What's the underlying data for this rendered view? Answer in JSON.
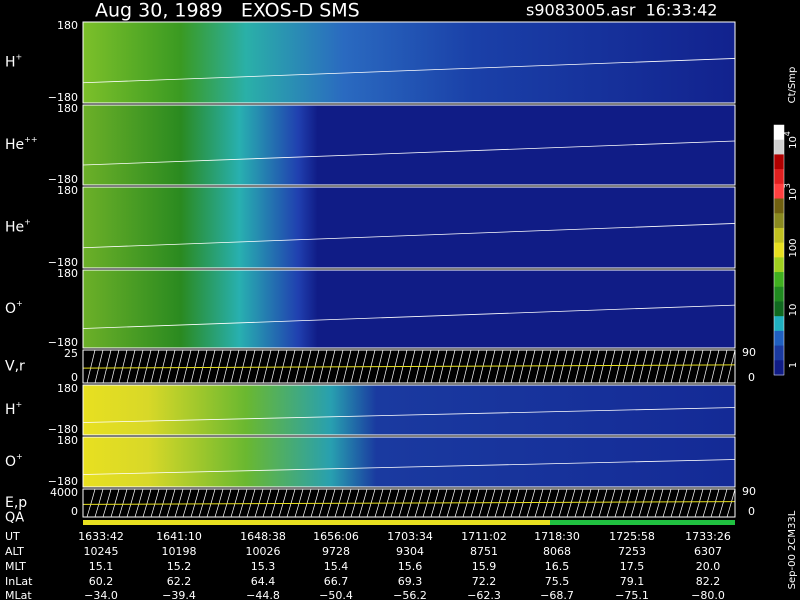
{
  "header": {
    "title": "Aug 30, 1989   EXOS-D SMS",
    "file": "s9083005.asr  16:33:42"
  },
  "panels": [
    {
      "label": {
        "base": "H",
        "sup": "+"
      },
      "ticks": [
        "180",
        "−180"
      ]
    },
    {
      "label": {
        "base": "He",
        "sup": "++"
      },
      "ticks": [
        "180",
        "−180"
      ]
    },
    {
      "label": {
        "base": "He",
        "sup": "+"
      },
      "ticks": [
        "180",
        "−180"
      ]
    },
    {
      "label": {
        "base": "O",
        "sup": "+"
      },
      "ticks": [
        "180",
        "−180"
      ]
    },
    {
      "label": {
        "base": "V,r"
      },
      "ticks": [
        "25",
        "0"
      ],
      "right_ticks": [
        "90",
        "0"
      ]
    },
    {
      "label": {
        "base": "H",
        "sup": "+"
      },
      "ticks": [
        "180",
        "−180"
      ]
    },
    {
      "label": {
        "base": "O",
        "sup": "+"
      },
      "ticks": [
        "180",
        "−180"
      ]
    },
    {
      "label": {
        "base": "E,p"
      },
      "ticks": [
        "4000",
        "0"
      ],
      "right_ticks": [
        "90",
        "0"
      ]
    }
  ],
  "qa_label": "QA",
  "colorbar": {
    "unit": "Ct/Smp",
    "ticks": [
      {
        "base": "10",
        "sup": "4"
      },
      {
        "base": "10",
        "sup": "3"
      },
      {
        "base": "100"
      },
      {
        "base": "10"
      },
      {
        "base": "1"
      }
    ]
  },
  "table": {
    "rows": [
      {
        "label": "UT",
        "values": [
          "1633:42",
          "1641:10",
          "1648:38",
          "1656:06",
          "1703:34",
          "1711:02",
          "1718:30",
          "1725:58",
          "1733:26"
        ]
      },
      {
        "label": "ALT",
        "values": [
          "10245",
          "10198",
          "10026",
          "9728",
          "9304",
          "8751",
          "8068",
          "7253",
          "6307"
        ]
      },
      {
        "label": "MLT",
        "values": [
          "15.1",
          "15.2",
          "15.3",
          "15.4",
          "15.6",
          "15.9",
          "16.5",
          "17.5",
          "20.0"
        ]
      },
      {
        "label": "InLat",
        "values": [
          "60.2",
          "62.2",
          "64.4",
          "66.7",
          "69.3",
          "72.2",
          "75.5",
          "79.1",
          "82.2"
        ]
      },
      {
        "label": "MLat",
        "values": [
          "−34.0",
          "−39.4",
          "−44.8",
          "−50.4",
          "−56.2",
          "−62.3",
          "−68.7",
          "−75.1",
          "−80.0"
        ]
      }
    ]
  },
  "footer": "Sep-00 2CM33L"
}
